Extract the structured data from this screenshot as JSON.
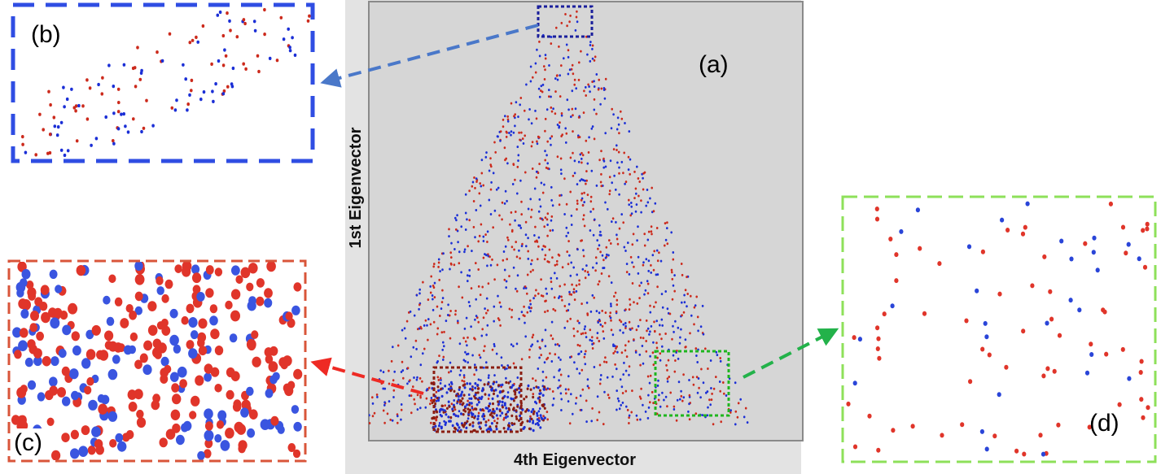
{
  "figure": {
    "main_panel": {
      "label": "(a)",
      "x_axis_label": "4th Eigenvector",
      "y_axis_label": "1st Eigenvector"
    },
    "insets": [
      {
        "id": "b",
        "label": "(b)",
        "border_color": "#2f4de3",
        "source_box_color": "#1a1f9c",
        "arrow_color": "#4a78c9"
      },
      {
        "id": "c",
        "label": "(c)",
        "border_color": "#d9553a",
        "source_box_color": "#8b1d12",
        "arrow_color": "#ee2a24"
      },
      {
        "id": "d",
        "label": "(d)",
        "border_color": "#8ee05a",
        "source_box_color": "#1fb51f",
        "arrow_color": "#23b24a"
      }
    ],
    "point_colors": {
      "red": "#cc2a1c",
      "blue": "#1b2fd6"
    }
  }
}
